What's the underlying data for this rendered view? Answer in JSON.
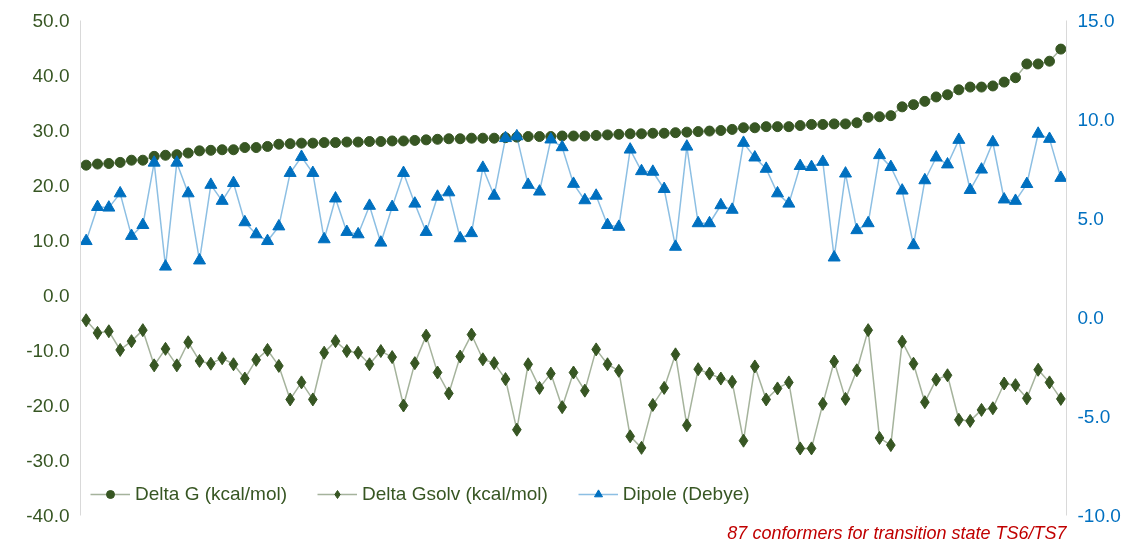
{
  "chart_data": {
    "type": "line",
    "categories": [
      null,
      null,
      null,
      null,
      null,
      null,
      null,
      null,
      null,
      null,
      null,
      null,
      null,
      null,
      null,
      null,
      null,
      null,
      null,
      null,
      null,
      null,
      null,
      null,
      null,
      null,
      null,
      null,
      null,
      null,
      null,
      null,
      null,
      null,
      null,
      null,
      null,
      null,
      null,
      null,
      null,
      null,
      null,
      null,
      null,
      null,
      null,
      null,
      null,
      null,
      null,
      null,
      null,
      null,
      null,
      null,
      null,
      null,
      null,
      null,
      null,
      null,
      null,
      null,
      null,
      null,
      null,
      null,
      null,
      null,
      null,
      null,
      null,
      null,
      null,
      null,
      null,
      null,
      null,
      null,
      null,
      null,
      null,
      null,
      null,
      null,
      null
    ],
    "series": [
      {
        "name": "Delta G (kcal/mol)",
        "color": "#375623",
        "marker": "circle",
        "values": [
          23.7,
          23.9,
          24.0,
          24.2,
          24.6,
          24.6,
          25.3,
          25.5,
          25.6,
          25.9,
          26.3,
          26.4,
          26.5,
          26.5,
          26.9,
          26.9,
          27.1,
          27.5,
          27.6,
          27.7,
          27.7,
          27.8,
          27.8,
          27.9,
          27.9,
          28.0,
          28.0,
          28.1,
          28.1,
          28.2,
          28.3,
          28.4,
          28.5,
          28.5,
          28.6,
          28.6,
          28.6,
          28.7,
          28.8,
          28.9,
          28.9,
          28.9,
          29.0,
          29.0,
          29.0,
          29.1,
          29.2,
          29.3,
          29.4,
          29.4,
          29.5,
          29.5,
          29.6,
          29.7,
          29.8,
          29.9,
          30.0,
          30.2,
          30.5,
          30.5,
          30.7,
          30.7,
          30.7,
          30.9,
          31.1,
          31.1,
          31.2,
          31.2,
          31.4,
          32.4,
          32.5,
          32.7,
          34.3,
          34.7,
          35.3,
          36.1,
          36.5,
          37.4,
          37.9,
          37.9,
          38.1,
          38.8,
          39.6,
          42.1,
          42.1,
          42.6,
          44.8
        ]
      },
      {
        "name": "Delta Gsolv (kcal/mol)",
        "color": "#375623",
        "marker": "diamond",
        "values": [
          -4.5,
          -6.8,
          -6.5,
          -9.9,
          -8.3,
          -6.3,
          -12.7,
          -9.7,
          -12.7,
          -8.5,
          -11.9,
          -12.4,
          -11.4,
          -12.5,
          -15.1,
          -11.7,
          -9.9,
          -12.8,
          -18.9,
          -15.8,
          -18.9,
          -10.4,
          -8.3,
          -10.1,
          -10.4,
          -12.5,
          -10.1,
          -11.2,
          -20.0,
          -12.3,
          -7.3,
          -14.0,
          -17.8,
          -11.1,
          -7.1,
          -11.6,
          -12.3,
          -15.2,
          -24.4,
          -12.5,
          -16.8,
          -14.2,
          -20.3,
          -14.0,
          -17.3,
          -9.8,
          -12.5,
          -13.7,
          -25.6,
          -27.7,
          -19.9,
          -16.8,
          -10.7,
          -23.6,
          -13.4,
          -14.2,
          -15.1,
          -15.7,
          -26.4,
          -12.9,
          -18.9,
          -16.9,
          -15.8,
          -27.8,
          -27.8,
          -19.7,
          -12.0,
          -18.8,
          -13.6,
          -6.3,
          -25.9,
          -27.2,
          -8.4,
          -12.4,
          -19.4,
          -15.3,
          -14.5,
          -22.6,
          -22.8,
          -20.8,
          -20.5,
          -16.0,
          -16.3,
          -18.7,
          -13.5,
          -15.8,
          -18.8
        ]
      },
      {
        "name": "Dipole (Debye)",
        "color": "#0070c0",
        "marker": "triangle",
        "axis": "y2",
        "values": [
          3.86,
          5.58,
          5.55,
          6.27,
          4.12,
          4.67,
          7.82,
          2.57,
          7.82,
          6.27,
          2.88,
          6.7,
          5.89,
          6.79,
          4.81,
          4.2,
          3.86,
          4.6,
          7.3,
          8.11,
          7.3,
          3.95,
          6.01,
          4.32,
          4.2,
          5.64,
          3.78,
          5.58,
          7.3,
          5.75,
          4.32,
          6.1,
          6.32,
          4.0,
          4.26,
          7.56,
          6.15,
          9.06,
          9.15,
          6.7,
          6.36,
          8.99,
          8.6,
          6.75,
          5.92,
          6.15,
          4.67,
          4.58,
          8.48,
          7.39,
          7.36,
          6.49,
          3.57,
          8.63,
          4.76,
          4.76,
          5.67,
          5.44,
          8.82,
          8.08,
          7.51,
          6.27,
          5.75,
          7.65,
          7.6,
          7.86,
          3.03,
          7.27,
          4.41,
          4.76,
          8.2,
          7.6,
          6.41,
          3.65,
          6.93,
          8.08,
          7.73,
          8.97,
          6.44,
          7.47,
          8.85,
          5.96,
          5.89,
          6.74,
          9.28,
          9.02,
          7.05
        ]
      }
    ],
    "ylim": [
      -40,
      50
    ],
    "yticks": [
      {
        "value": -40,
        "label": "-40.0"
      },
      {
        "value": -30,
        "label": "-30.0"
      },
      {
        "value": -20,
        "label": "-20.0"
      },
      {
        "value": -10,
        "label": "-10.0"
      },
      {
        "value": 0,
        "label": "0.0"
      },
      {
        "value": 10,
        "label": "10.0"
      },
      {
        "value": 20,
        "label": "20.0"
      },
      {
        "value": 30,
        "label": "30.0"
      },
      {
        "value": 40,
        "label": "40.0"
      },
      {
        "value": 50,
        "label": "50.0"
      }
    ],
    "y2lim": [
      -10,
      15
    ],
    "y2ticks": [
      {
        "value": -10,
        "label": "-10.0"
      },
      {
        "value": -5,
        "label": "-5.0"
      },
      {
        "value": 0,
        "label": "0.0"
      },
      {
        "value": 5,
        "label": "5.0"
      },
      {
        "value": 10,
        "label": "10.0"
      },
      {
        "value": 15,
        "label": "15.0"
      }
    ],
    "tick_labels": "y",
    "grid": false,
    "legend": "bottom left",
    "annotations": [
      "87 conformers for transition state TS6/TS7"
    ]
  }
}
